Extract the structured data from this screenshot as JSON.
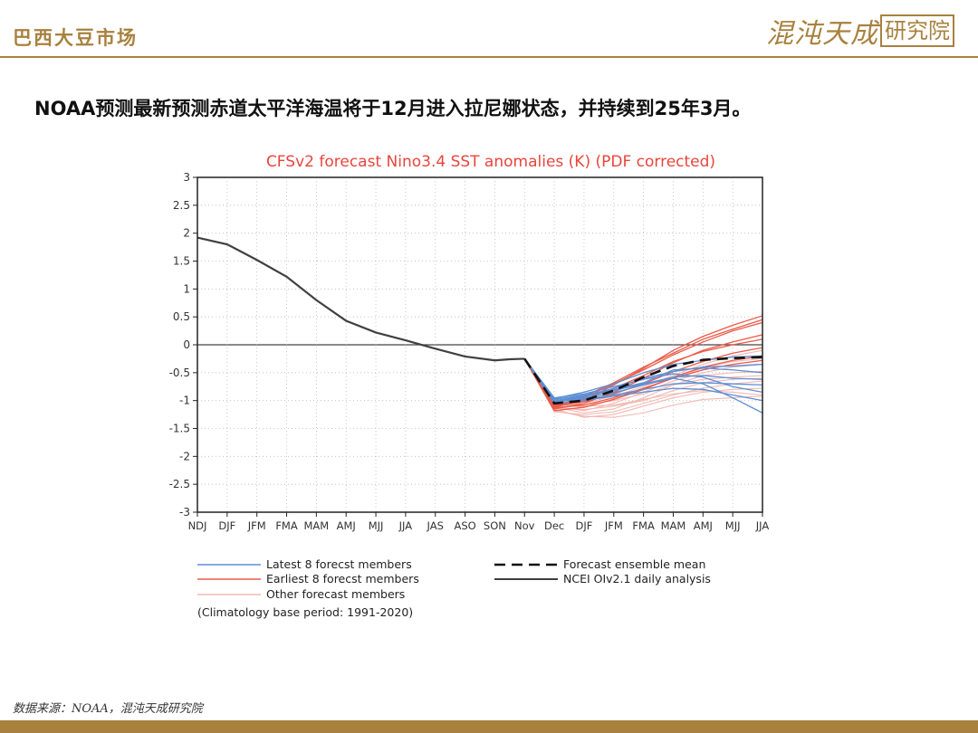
{
  "header": {
    "title": "巴西大豆市场",
    "logo_main": "混沌天成",
    "logo_box": "研究院"
  },
  "headline": "NOAA预测最新预测赤道太平洋海温将于12月进入拉尼娜状态，并持续到25年3月。",
  "source": "数据来源：NOAA，混沌天成研究院",
  "colors": {
    "accent": "#a8813f",
    "chart_title": "#e8453c",
    "latest_members": "#5b8fd6",
    "earliest_members": "#ea5a48",
    "other_members": "#f2b9b2",
    "analysis": "#404040"
  },
  "chart_data": {
    "type": "line",
    "title": "CFSv2 forecast Nino3.4 SST anomalies (K) (PDF corrected)",
    "categories": [
      "NDJ",
      "DJF",
      "JFM",
      "FMA",
      "MAM",
      "AMJ",
      "MJJ",
      "JJA",
      "JAS",
      "ASO",
      "SON",
      "Nov",
      "Dec",
      "DJF",
      "JFM",
      "FMA",
      "MAM",
      "AMJ",
      "MJJ",
      "JJA"
    ],
    "ylim": [
      -3,
      3
    ],
    "yticks": [
      "3",
      "2.5",
      "2",
      "1.5",
      "1",
      "0.5",
      "0",
      "-0.5",
      "-1",
      "-1.5",
      "-2",
      "-2.5",
      "-3"
    ],
    "grid": true,
    "zero_line": true,
    "legend": {
      "position": "bottom",
      "latest": "Latest 8 forecst members",
      "earliest": "Earliest 8 forecst members",
      "other": "Other forecast members",
      "mean": "Forecast ensemble mean",
      "analysis": "NCEI OIv2.1 daily analysis",
      "note": "(Climatology base period: 1991-2020)"
    },
    "analysis_series": {
      "x": [
        0,
        1,
        2,
        3,
        4,
        5,
        6,
        7,
        8,
        9,
        10,
        10.5,
        11
      ],
      "values": [
        1.92,
        1.8,
        1.52,
        1.22,
        0.8,
        0.43,
        0.22,
        0.08,
        -0.07,
        -0.21,
        -0.28,
        -0.26,
        -0.25
      ]
    },
    "ensemble_mean": {
      "x": [
        11,
        12,
        13,
        14,
        15,
        16,
        17,
        18,
        19
      ],
      "values": [
        -0.25,
        -1.05,
        -1.0,
        -0.82,
        -0.58,
        -0.38,
        -0.27,
        -0.24,
        -0.22
      ]
    },
    "latest_members": [
      {
        "x": [
          12,
          13,
          14,
          15,
          16,
          17,
          18,
          19
        ],
        "values": [
          -0.95,
          -0.88,
          -0.75,
          -0.62,
          -0.52,
          -0.58,
          -0.75,
          -0.85
        ]
      },
      {
        "x": [
          12,
          13,
          14,
          15,
          16,
          17,
          18,
          19
        ],
        "values": [
          -1.0,
          -0.95,
          -0.86,
          -0.72,
          -0.6,
          -0.7,
          -0.95,
          -1.22
        ]
      },
      {
        "x": [
          12,
          13,
          14,
          15,
          16,
          17,
          18,
          19
        ],
        "values": [
          -0.98,
          -0.9,
          -0.8,
          -0.68,
          -0.45,
          -0.42,
          -0.45,
          -0.5
        ]
      },
      {
        "x": [
          12,
          13,
          14,
          15,
          16,
          17,
          18,
          19
        ],
        "values": [
          -1.02,
          -0.97,
          -0.9,
          -0.8,
          -0.7,
          -0.68,
          -0.7,
          -0.72
        ]
      },
      {
        "x": [
          12,
          13,
          14,
          15,
          16,
          17,
          18,
          19
        ],
        "values": [
          -0.96,
          -0.85,
          -0.7,
          -0.5,
          -0.35,
          -0.28,
          -0.22,
          -0.2
        ]
      },
      {
        "x": [
          12,
          13,
          14,
          15,
          16,
          17,
          18,
          19
        ],
        "values": [
          -1.05,
          -1.0,
          -0.92,
          -0.85,
          -0.78,
          -0.8,
          -0.9,
          -1.0
        ]
      },
      {
        "x": [
          12,
          13,
          14,
          15,
          16,
          17,
          18,
          19
        ],
        "values": [
          -0.97,
          -0.92,
          -0.78,
          -0.6,
          -0.48,
          -0.4,
          -0.38,
          -0.35
        ]
      },
      {
        "x": [
          12,
          13,
          14,
          15,
          16,
          17,
          18,
          19
        ],
        "values": [
          -1.0,
          -0.93,
          -0.82,
          -0.7,
          -0.58,
          -0.55,
          -0.6,
          -0.62
        ]
      }
    ],
    "earliest_members": [
      {
        "x": [
          12,
          13,
          14,
          15,
          16,
          17,
          18,
          19
        ],
        "values": [
          -1.12,
          -1.0,
          -0.72,
          -0.42,
          -0.1,
          0.15,
          0.35,
          0.52
        ]
      },
      {
        "x": [
          12,
          13,
          14,
          15,
          16,
          17,
          18,
          19
        ],
        "values": [
          -1.08,
          -0.95,
          -0.7,
          -0.45,
          -0.18,
          0.05,
          0.25,
          0.4
        ]
      },
      {
        "x": [
          12,
          13,
          14,
          15,
          16,
          17,
          18,
          19
        ],
        "values": [
          -1.15,
          -1.05,
          -0.85,
          -0.6,
          -0.32,
          -0.1,
          0.05,
          0.18
        ]
      },
      {
        "x": [
          12,
          13,
          14,
          15,
          16,
          17,
          18,
          19
        ],
        "values": [
          -1.1,
          -1.02,
          -0.88,
          -0.7,
          -0.48,
          -0.3,
          -0.15,
          -0.05
        ]
      },
      {
        "x": [
          12,
          13,
          14,
          15,
          16,
          17,
          18,
          19
        ],
        "values": [
          -1.18,
          -1.12,
          -0.98,
          -0.8,
          -0.58,
          -0.4,
          -0.28,
          -0.2
        ]
      },
      {
        "x": [
          12,
          13,
          14,
          15,
          16,
          17,
          18,
          19
        ],
        "values": [
          -1.05,
          -0.92,
          -0.68,
          -0.4,
          -0.15,
          0.1,
          0.28,
          0.45
        ]
      },
      {
        "x": [
          12,
          13,
          14,
          15,
          16,
          17,
          18,
          19
        ],
        "values": [
          -1.13,
          -1.08,
          -0.95,
          -0.78,
          -0.6,
          -0.45,
          -0.35,
          -0.28
        ]
      },
      {
        "x": [
          12,
          13,
          14,
          15,
          16,
          17,
          18,
          19
        ],
        "values": [
          -1.09,
          -0.98,
          -0.78,
          -0.55,
          -0.3,
          -0.12,
          0.0,
          0.1
        ]
      }
    ],
    "other_members": [
      {
        "x": [
          12,
          13,
          14,
          15,
          16,
          17,
          18,
          19
        ],
        "values": [
          -1.2,
          -1.25,
          -1.2,
          -1.05,
          -0.9,
          -0.78,
          -0.7,
          -0.65
        ]
      },
      {
        "x": [
          12,
          13,
          14,
          15,
          16,
          17,
          18,
          19
        ],
        "values": [
          -1.15,
          -1.3,
          -1.25,
          -1.1,
          -0.95,
          -0.85,
          -0.8,
          -0.78
        ]
      },
      {
        "x": [
          12,
          13,
          14,
          15,
          16,
          17,
          18,
          19
        ],
        "values": [
          -1.1,
          -1.18,
          -1.05,
          -0.85,
          -0.65,
          -0.5,
          -0.4,
          -0.35
        ]
      },
      {
        "x": [
          12,
          13,
          14,
          15,
          16,
          17,
          18,
          19
        ],
        "values": [
          -1.05,
          -1.1,
          -1.08,
          -0.98,
          -0.88,
          -0.82,
          -0.85,
          -0.9
        ]
      },
      {
        "x": [
          12,
          13,
          14,
          15,
          16,
          17,
          18,
          19
        ],
        "values": [
          -1.12,
          -1.22,
          -1.15,
          -0.95,
          -0.72,
          -0.55,
          -0.5,
          -0.48
        ]
      },
      {
        "x": [
          12,
          13,
          14,
          15,
          16,
          17,
          18,
          19
        ],
        "values": [
          -1.08,
          -1.05,
          -0.92,
          -0.75,
          -0.55,
          -0.35,
          -0.2,
          -0.1
        ]
      },
      {
        "x": [
          12,
          13,
          14,
          15,
          16,
          17,
          18,
          19
        ],
        "values": [
          -1.18,
          -1.28,
          -1.3,
          -1.22,
          -1.08,
          -0.98,
          -0.95,
          -0.92
        ]
      },
      {
        "x": [
          12,
          13,
          14,
          15,
          16,
          17,
          18,
          19
        ],
        "values": [
          -1.02,
          -1.08,
          -1.0,
          -0.88,
          -0.72,
          -0.62,
          -0.58,
          -0.55
        ]
      },
      {
        "x": [
          12,
          13,
          14,
          15,
          16,
          17,
          18,
          19
        ],
        "values": [
          -1.14,
          -1.16,
          -1.1,
          -1.0,
          -0.82,
          -0.68,
          -0.62,
          -0.6
        ]
      },
      {
        "x": [
          12,
          13,
          14,
          15,
          16,
          17,
          18,
          19
        ],
        "values": [
          -1.06,
          -1.12,
          -0.98,
          -0.8,
          -0.6,
          -0.42,
          -0.3,
          -0.25
        ]
      }
    ]
  }
}
